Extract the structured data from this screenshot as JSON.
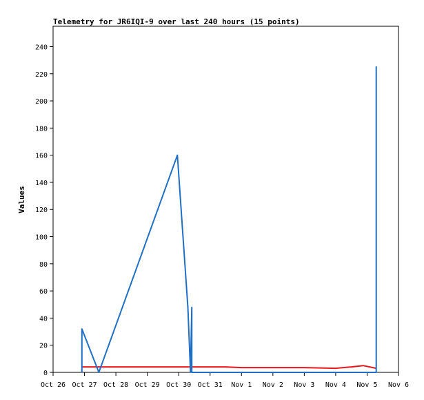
{
  "chart_data": {
    "type": "line",
    "title": "Telemetry for JR6IQI-9 over last 240 hours (15 points)",
    "ylabel": "Values",
    "xlabel": "",
    "ylim": [
      0,
      255
    ],
    "yticks": [
      0,
      20,
      40,
      60,
      80,
      100,
      120,
      140,
      160,
      180,
      200,
      220,
      240
    ],
    "xlim": [
      "2023-10-26",
      "2023-11-06"
    ],
    "xticks": [
      {
        "date": "2023-10-26",
        "label": "Oct 26"
      },
      {
        "date": "2023-10-27",
        "label": "Oct 27"
      },
      {
        "date": "2023-10-28",
        "label": "Oct 28"
      },
      {
        "date": "2023-10-29",
        "label": "Oct 29"
      },
      {
        "date": "2023-10-30",
        "label": "Oct 30"
      },
      {
        "date": "2023-10-31",
        "label": "Oct 31"
      },
      {
        "date": "2023-11-01",
        "label": "Nov 1"
      },
      {
        "date": "2023-11-02",
        "label": "Nov 2"
      },
      {
        "date": "2023-11-03",
        "label": "Nov 3"
      },
      {
        "date": "2023-11-04",
        "label": "Nov 4"
      },
      {
        "date": "2023-11-05",
        "label": "Nov 5"
      },
      {
        "date": "2023-11-06",
        "label": "Nov 6"
      }
    ],
    "grid": false,
    "series": [
      {
        "color": "#1f6fc5",
        "points": [
          {
            "x": "2023-10-26 22:00",
            "y": 0
          },
          {
            "x": "2023-10-26 22:00",
            "y": 32
          },
          {
            "x": "2023-10-27 11:00",
            "y": 0
          },
          {
            "x": "2023-10-29 23:00",
            "y": 160
          },
          {
            "x": "2023-10-30 07:00",
            "y": 48
          },
          {
            "x": "2023-10-30 09:00",
            "y": 0
          },
          {
            "x": "2023-10-30 10:00",
            "y": 48
          },
          {
            "x": "2023-10-30 10:00",
            "y": 0
          },
          {
            "x": "2023-11-05 07:00",
            "y": 0
          },
          {
            "x": "2023-11-05 07:00",
            "y": 225
          },
          {
            "x": "2023-11-05 07:00",
            "y": 0
          }
        ]
      },
      {
        "color": "#e8161c",
        "points": [
          {
            "x": "2023-10-26 22:00",
            "y": 4
          },
          {
            "x": "2023-10-28 00:00",
            "y": 4
          },
          {
            "x": "2023-10-31 12:00",
            "y": 4
          },
          {
            "x": "2023-11-01 00:00",
            "y": 3.5
          },
          {
            "x": "2023-11-03 00:00",
            "y": 3.5
          },
          {
            "x": "2023-11-04 00:00",
            "y": 3
          },
          {
            "x": "2023-11-04 12:00",
            "y": 4
          },
          {
            "x": "2023-11-04 21:00",
            "y": 5
          },
          {
            "x": "2023-11-05 07:00",
            "y": 3
          }
        ]
      }
    ]
  }
}
